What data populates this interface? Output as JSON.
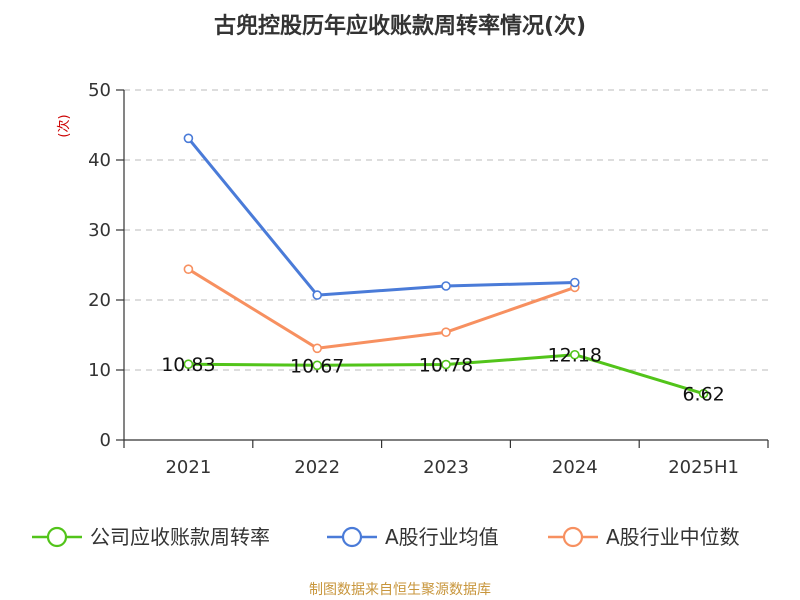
{
  "chart_data": {
    "type": "line",
    "title": "古兜控股历年应收账款周转率情况(次)",
    "ylabel": "(次)",
    "xlabel": "",
    "categories": [
      "2021",
      "2022",
      "2023",
      "2024",
      "2025H1"
    ],
    "ylim": [
      0,
      50
    ],
    "yticks": [
      0,
      10,
      20,
      30,
      40,
      50
    ],
    "grid": true,
    "legend_position": "bottom",
    "series": [
      {
        "name": "公司应收账款周转率",
        "color": "#52c41a",
        "values": [
          10.83,
          10.67,
          10.78,
          12.18,
          6.62
        ],
        "labels": [
          "10.83",
          "10.67",
          "10.78",
          "12.18",
          "6.62"
        ]
      },
      {
        "name": "A股行业均值",
        "color": "#4a7bd8",
        "values": [
          43.1,
          20.7,
          22.0,
          22.5,
          null
        ]
      },
      {
        "name": "A股行业中位数",
        "color": "#f79060",
        "values": [
          24.4,
          13.1,
          15.4,
          21.8,
          null
        ]
      }
    ],
    "unit_color": "#cc0000"
  },
  "footer": {
    "source": "制图数据来自恒生聚源数据库",
    "source_color": "#c8963c"
  }
}
